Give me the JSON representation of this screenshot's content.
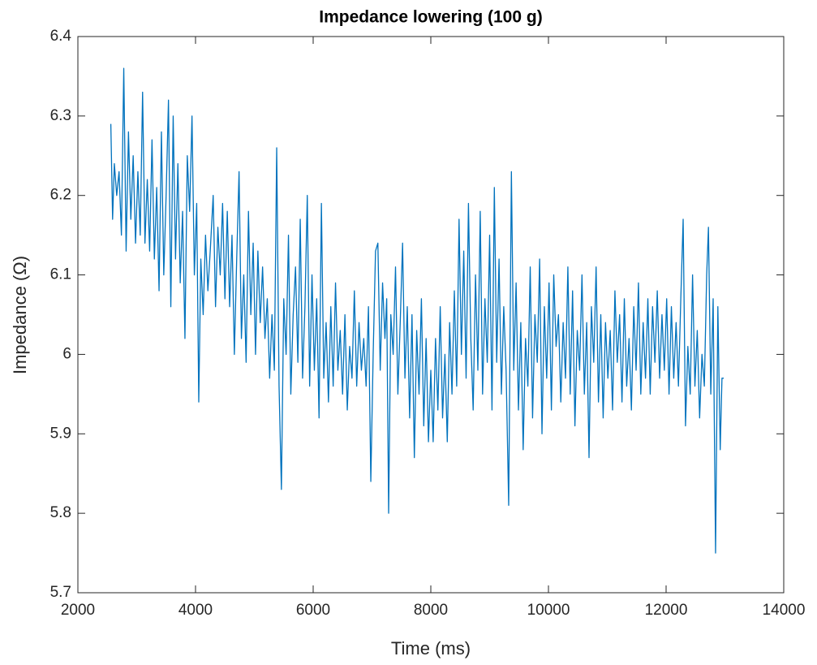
{
  "chart_data": {
    "type": "line",
    "title": "Impedance lowering (100 g)",
    "xlabel": "Time (ms)",
    "ylabel": "Impedance (Ω)",
    "xlim": [
      2000,
      14000
    ],
    "xticks": [
      2000,
      4000,
      6000,
      8000,
      10000,
      12000,
      14000
    ],
    "ylim": [
      5.7,
      6.4
    ],
    "yticks": [
      5.7,
      5.8,
      5.9,
      6,
      6.1,
      6.2,
      6.3,
      6.4
    ],
    "grid": false,
    "series": [
      {
        "color": "#0072bd",
        "x": [
          2560,
          2590,
          2620,
          2660,
          2700,
          2740,
          2780,
          2820,
          2860,
          2900,
          2940,
          2980,
          3020,
          3060,
          3100,
          3140,
          3180,
          3220,
          3260,
          3300,
          3340,
          3380,
          3420,
          3460,
          3500,
          3540,
          3580,
          3620,
          3660,
          3700,
          3740,
          3780,
          3820,
          3860,
          3900,
          3940,
          3980,
          4020,
          4055,
          4090,
          4130,
          4170,
          4210,
          4250,
          4300,
          4340,
          4380,
          4420,
          4460,
          4500,
          4540,
          4580,
          4620,
          4660,
          4700,
          4740,
          4780,
          4820,
          4860,
          4900,
          4940,
          4980,
          5020,
          5060,
          5100,
          5140,
          5180,
          5220,
          5260,
          5300,
          5340,
          5380,
          5420,
          5460,
          5500,
          5540,
          5580,
          5620,
          5660,
          5700,
          5740,
          5780,
          5820,
          5860,
          5900,
          5940,
          5980,
          6020,
          6060,
          6100,
          6140,
          6180,
          6220,
          6260,
          6300,
          6340,
          6380,
          6420,
          6460,
          6500,
          6540,
          6580,
          6620,
          6660,
          6700,
          6740,
          6780,
          6820,
          6860,
          6900,
          6940,
          6980,
          7020,
          7060,
          7100,
          7140,
          7180,
          7220,
          7250,
          7283,
          7320,
          7360,
          7400,
          7440,
          7480,
          7520,
          7560,
          7600,
          7640,
          7680,
          7720,
          7760,
          7800,
          7840,
          7880,
          7920,
          7960,
          8000,
          8040,
          8080,
          8120,
          8160,
          8200,
          8240,
          8280,
          8320,
          8360,
          8400,
          8440,
          8480,
          8520,
          8560,
          8600,
          8640,
          8680,
          8720,
          8760,
          8800,
          8840,
          8880,
          8920,
          8960,
          9000,
          9040,
          9080,
          9120,
          9160,
          9200,
          9240,
          9280,
          9324,
          9370,
          9410,
          9450,
          9490,
          9530,
          9570,
          9610,
          9650,
          9690,
          9730,
          9770,
          9810,
          9850,
          9890,
          9930,
          9970,
          10010,
          10050,
          10090,
          10130,
          10170,
          10210,
          10250,
          10290,
          10330,
          10370,
          10410,
          10450,
          10490,
          10530,
          10570,
          10610,
          10650,
          10690,
          10730,
          10770,
          10810,
          10850,
          10890,
          10930,
          10970,
          11010,
          11050,
          11090,
          11130,
          11170,
          11210,
          11250,
          11290,
          11330,
          11370,
          11410,
          11450,
          11490,
          11530,
          11570,
          11610,
          11650,
          11690,
          11730,
          11770,
          11810,
          11850,
          11890,
          11930,
          11970,
          12010,
          12050,
          12090,
          12130,
          12170,
          12210,
          12250,
          12290,
          12330,
          12370,
          12410,
          12450,
          12490,
          12530,
          12570,
          12610,
          12650,
          12690,
          12720,
          12760,
          12800,
          12841,
          12880,
          12920,
          12950,
          12980
        ],
        "values": [
          6.29,
          6.17,
          6.24,
          6.2,
          6.23,
          6.15,
          6.36,
          6.13,
          6.28,
          6.17,
          6.25,
          6.14,
          6.23,
          6.15,
          6.33,
          6.14,
          6.22,
          6.13,
          6.27,
          6.12,
          6.21,
          6.08,
          6.28,
          6.1,
          6.2,
          6.32,
          6.06,
          6.3,
          6.12,
          6.24,
          6.09,
          6.18,
          6.02,
          6.25,
          6.18,
          6.3,
          6.1,
          6.19,
          5.94,
          6.12,
          6.05,
          6.15,
          6.08,
          6.13,
          6.2,
          6.06,
          6.16,
          6.1,
          6.19,
          6.07,
          6.18,
          6.06,
          6.15,
          6.0,
          6.12,
          6.23,
          6.02,
          6.1,
          5.99,
          6.18,
          6.05,
          6.14,
          6.0,
          6.13,
          6.04,
          6.11,
          6.02,
          6.07,
          5.97,
          6.05,
          5.98,
          6.26,
          5.96,
          5.83,
          6.07,
          6.0,
          6.15,
          5.95,
          6.05,
          6.11,
          5.99,
          6.17,
          5.97,
          6.06,
          6.2,
          5.96,
          6.1,
          5.98,
          6.07,
          5.92,
          6.19,
          5.97,
          6.04,
          5.94,
          6.06,
          5.96,
          6.09,
          5.98,
          6.03,
          5.95,
          6.05,
          5.93,
          6.01,
          5.97,
          6.08,
          5.96,
          6.04,
          5.98,
          6.02,
          5.96,
          6.06,
          5.84,
          6.0,
          6.13,
          6.14,
          5.98,
          6.09,
          6.02,
          6.07,
          5.8,
          6.05,
          6.0,
          6.11,
          5.95,
          6.04,
          6.14,
          5.97,
          6.06,
          5.92,
          6.05,
          5.87,
          6.03,
          5.95,
          6.07,
          5.91,
          6.02,
          5.89,
          5.98,
          5.89,
          6.02,
          5.93,
          6.06,
          5.92,
          6.0,
          5.89,
          6.04,
          5.95,
          6.08,
          5.96,
          6.17,
          6.0,
          6.13,
          5.97,
          6.19,
          6.02,
          5.93,
          6.1,
          5.98,
          6.18,
          5.95,
          6.07,
          5.99,
          6.15,
          5.93,
          6.21,
          5.99,
          6.12,
          5.95,
          6.06,
          5.98,
          5.81,
          6.23,
          5.98,
          6.09,
          5.93,
          6.04,
          5.88,
          6.02,
          5.96,
          6.11,
          5.92,
          6.05,
          5.99,
          6.12,
          5.9,
          6.06,
          5.97,
          6.09,
          5.93,
          6.1,
          6.01,
          6.05,
          5.94,
          6.04,
          5.97,
          6.11,
          5.95,
          6.08,
          5.91,
          6.03,
          5.98,
          6.1,
          5.95,
          6.04,
          5.87,
          6.06,
          5.99,
          6.11,
          5.94,
          6.05,
          5.92,
          6.04,
          5.97,
          6.03,
          5.93,
          6.08,
          5.99,
          6.05,
          5.94,
          6.07,
          5.96,
          6.02,
          5.93,
          6.06,
          5.98,
          6.09,
          5.95,
          6.04,
          5.97,
          6.07,
          5.95,
          6.06,
          5.99,
          6.08,
          5.97,
          6.05,
          5.98,
          6.07,
          5.95,
          6.06,
          5.97,
          6.04,
          5.96,
          6.07,
          6.17,
          5.91,
          6.01,
          5.95,
          6.1,
          5.96,
          6.03,
          5.92,
          6.0,
          5.96,
          6.1,
          6.16,
          5.95,
          6.07,
          5.75,
          6.06,
          5.88,
          5.97,
          5.97
        ]
      }
    ]
  }
}
